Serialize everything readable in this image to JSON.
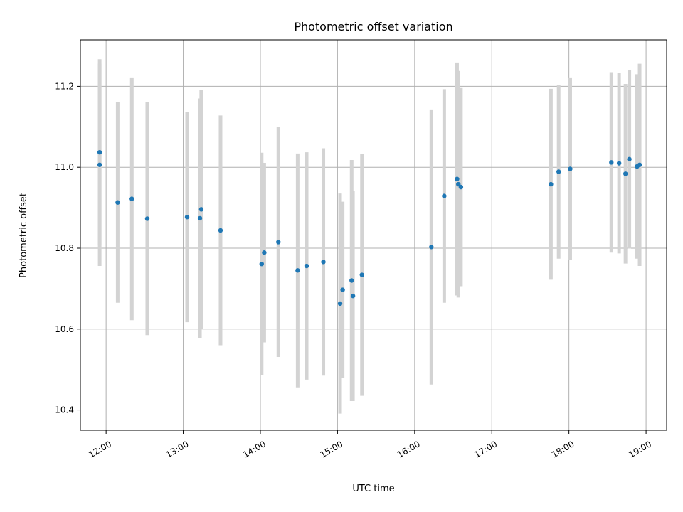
{
  "chart_data": {
    "type": "scatter",
    "title": "Photometric offset variation",
    "xlabel": "UTC time",
    "ylabel": "Photometric offset",
    "x_ticks": [
      "12:00",
      "13:00",
      "14:00",
      "15:00",
      "16:00",
      "17:00",
      "18:00",
      "19:00"
    ],
    "y_ticks": [
      "10.4",
      "10.6",
      "10.8",
      "11.0",
      "11.2"
    ],
    "xlim": [
      "11:40",
      "19:16"
    ],
    "ylim": [
      10.35,
      11.315
    ],
    "grid": true,
    "colors": {
      "point": "#1f77b4",
      "errorbar": "#d3d3d3"
    },
    "points": [
      {
        "t": "11:55",
        "y": 11.037,
        "err": 0.23
      },
      {
        "t": "11:55",
        "y": 11.006,
        "err": 0.25
      },
      {
        "t": "12:09",
        "y": 10.913,
        "err": 0.248
      },
      {
        "t": "12:20",
        "y": 10.922,
        "err": 0.3
      },
      {
        "t": "12:32",
        "y": 10.873,
        "err": 0.288
      },
      {
        "t": "13:03",
        "y": 10.877,
        "err": 0.26
      },
      {
        "t": "13:13",
        "y": 10.874,
        "err": 0.296
      },
      {
        "t": "13:14",
        "y": 10.896,
        "err": 0.296
      },
      {
        "t": "13:29",
        "y": 10.844,
        "err": 0.284
      },
      {
        "t": "14:01",
        "y": 10.761,
        "err": 0.275
      },
      {
        "t": "14:03",
        "y": 10.789,
        "err": 0.222
      },
      {
        "t": "14:14",
        "y": 10.815,
        "err": 0.284
      },
      {
        "t": "14:29",
        "y": 10.745,
        "err": 0.289
      },
      {
        "t": "14:36",
        "y": 10.756,
        "err": 0.281
      },
      {
        "t": "14:49",
        "y": 10.766,
        "err": 0.281
      },
      {
        "t": "15:02",
        "y": 10.663,
        "err": 0.272
      },
      {
        "t": "15:04",
        "y": 10.697,
        "err": 0.218
      },
      {
        "t": "15:11",
        "y": 10.72,
        "err": 0.298
      },
      {
        "t": "15:12",
        "y": 10.682,
        "err": 0.26
      },
      {
        "t": "15:19",
        "y": 10.734,
        "err": 0.299
      },
      {
        "t": "16:13",
        "y": 10.803,
        "err": 0.34
      },
      {
        "t": "16:23",
        "y": 10.929,
        "err": 0.264
      },
      {
        "t": "16:33",
        "y": 10.971,
        "err": 0.288
      },
      {
        "t": "16:34",
        "y": 10.958,
        "err": 0.28
      },
      {
        "t": "16:36",
        "y": 10.951,
        "err": 0.245
      },
      {
        "t": "17:46",
        "y": 10.958,
        "err": 0.236
      },
      {
        "t": "17:52",
        "y": 10.989,
        "err": 0.215
      },
      {
        "t": "18:01",
        "y": 10.996,
        "err": 0.226
      },
      {
        "t": "18:33",
        "y": 11.012,
        "err": 0.223
      },
      {
        "t": "18:39",
        "y": 11.01,
        "err": 0.223
      },
      {
        "t": "18:44",
        "y": 10.984,
        "err": 0.222
      },
      {
        "t": "18:47",
        "y": 11.02,
        "err": 0.221
      },
      {
        "t": "18:53",
        "y": 11.002,
        "err": 0.228
      },
      {
        "t": "18:55",
        "y": 11.006,
        "err": 0.25
      }
    ]
  }
}
